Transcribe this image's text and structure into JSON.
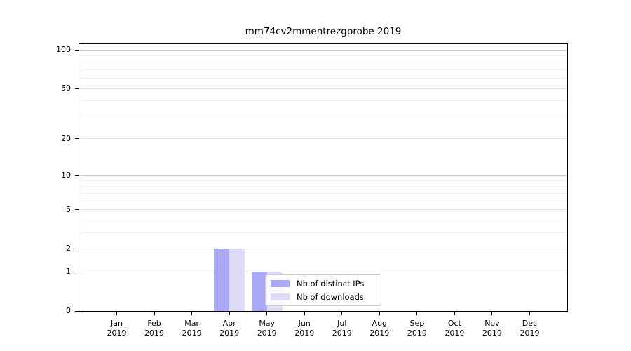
{
  "figure": {
    "title": "mm74cv2mmentrezgprobe 2019"
  },
  "colors": {
    "background": "#ffffff",
    "axis": "#000000",
    "bar_distinct_ips": "#a9a9f7",
    "bar_downloads": "#dcdcf9",
    "grid_emphasis": "#c8c8c8",
    "grid_major": "#e3e3e3",
    "grid_minor": "#f0f0f0",
    "legend_border": "#cccccc"
  },
  "chart_data": {
    "type": "bar",
    "title": "mm74cv2mmentrezgprobe 2019",
    "categories": [
      "Jan",
      "Feb",
      "Mar",
      "Apr",
      "May",
      "Jun",
      "Jul",
      "Aug",
      "Sep",
      "Oct",
      "Nov",
      "Dec"
    ],
    "x_year": "2019",
    "series": [
      {
        "name": "Nb of distinct IPs",
        "color": "#a9a9f7",
        "values": [
          0,
          0,
          0,
          2,
          1,
          0,
          0,
          0,
          0,
          0,
          0,
          0
        ]
      },
      {
        "name": "Nb of downloads",
        "color": "#dcdcf9",
        "values": [
          0,
          0,
          0,
          2,
          1,
          0,
          0,
          0,
          0,
          0,
          0,
          0
        ]
      }
    ],
    "yscale": "log1p",
    "ylim": [
      0,
      112
    ],
    "y_ticks": [
      0,
      1,
      2,
      5,
      10,
      20,
      50,
      100
    ],
    "y_grid_emphasis": [
      1,
      10,
      100
    ],
    "y_grid_major": [
      2,
      5,
      20,
      50
    ],
    "y_grid_minor": [
      3,
      4,
      6,
      7,
      8,
      9,
      30,
      40,
      60,
      70,
      80,
      90
    ],
    "grid": "horizontal only",
    "legend_position": "lower center, inside axes"
  }
}
